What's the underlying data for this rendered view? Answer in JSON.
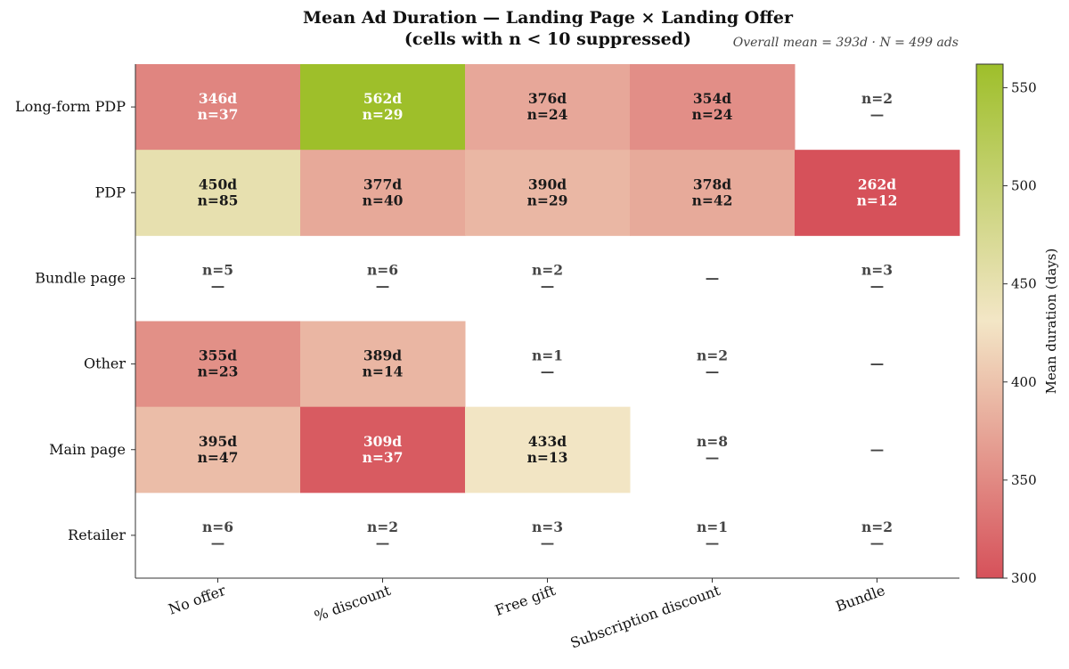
{
  "chart_data": {
    "type": "heatmap",
    "title_line1": "Mean Ad Duration — Landing Page × Landing Offer",
    "title_line2": "(cells with n < 10 suppressed)",
    "annotation": "Overall mean = 393d  ·  N = 499 ads",
    "rows": [
      "Long-form PDP",
      "PDP",
      "Bundle page",
      "Other",
      "Main page",
      "Retailer"
    ],
    "columns": [
      "No offer",
      "% discount",
      "Free gift",
      "Subscription discount",
      "Bundle"
    ],
    "values": [
      [
        346,
        562,
        376,
        354,
        null
      ],
      [
        450,
        377,
        390,
        378,
        262
      ],
      [
        null,
        null,
        null,
        null,
        null
      ],
      [
        355,
        389,
        null,
        null,
        null
      ],
      [
        395,
        309,
        433,
        null,
        null
      ],
      [
        null,
        null,
        null,
        null,
        null
      ]
    ],
    "counts": [
      [
        37,
        29,
        24,
        24,
        2
      ],
      [
        85,
        40,
        29,
        42,
        12
      ],
      [
        5,
        6,
        2,
        null,
        3
      ],
      [
        23,
        14,
        1,
        2,
        null
      ],
      [
        47,
        37,
        13,
        8,
        null
      ],
      [
        6,
        2,
        3,
        1,
        2
      ]
    ],
    "suppressed_mark": "—",
    "colorbar": {
      "label": "Mean duration (days)",
      "min": 300,
      "max": 562,
      "ticks": [
        300,
        350,
        400,
        450,
        500,
        550
      ],
      "colors": {
        "low": "#d6515a",
        "mid": "#f3e6c6",
        "high": "#9ebf2a"
      }
    }
  }
}
